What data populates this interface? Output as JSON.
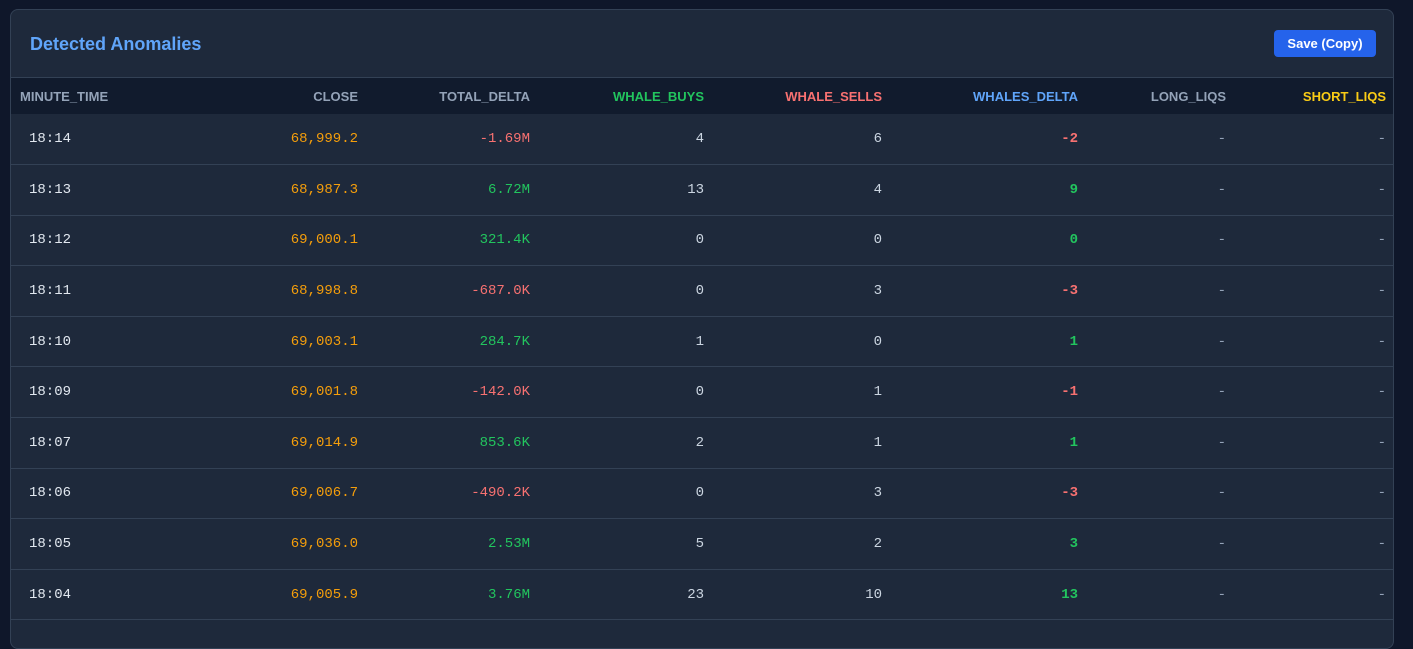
{
  "panel": {
    "title": "Detected Anomalies",
    "save_label": "Save (Copy)"
  },
  "colors": {
    "background": "#0f172a",
    "panel": "#1e293b",
    "title": "#60a5fa",
    "button": "#2563eb",
    "close": "#f59e0b",
    "positive": "#22c55e",
    "negative": "#f87171",
    "short_liqs_header": "#facc15"
  },
  "columns": [
    "MINUTE_TIME",
    "CLOSE",
    "TOTAL_DELTA",
    "WHALE_BUYS",
    "WHALE_SELLS",
    "WHALES_DELTA",
    "LONG_LIQS",
    "SHORT_LIQS"
  ],
  "rows": [
    {
      "time": "18:14",
      "close": "68,999.2",
      "total_delta": "-1.69M",
      "whale_buys": "4",
      "whale_sells": "6",
      "whales_delta": "-2",
      "long_liqs": "-",
      "short_liqs": "-"
    },
    {
      "time": "18:13",
      "close": "68,987.3",
      "total_delta": "6.72M",
      "whale_buys": "13",
      "whale_sells": "4",
      "whales_delta": "9",
      "long_liqs": "-",
      "short_liqs": "-"
    },
    {
      "time": "18:12",
      "close": "69,000.1",
      "total_delta": "321.4K",
      "whale_buys": "0",
      "whale_sells": "0",
      "whales_delta": "0",
      "long_liqs": "-",
      "short_liqs": "-"
    },
    {
      "time": "18:11",
      "close": "68,998.8",
      "total_delta": "-687.0K",
      "whale_buys": "0",
      "whale_sells": "3",
      "whales_delta": "-3",
      "long_liqs": "-",
      "short_liqs": "-"
    },
    {
      "time": "18:10",
      "close": "69,003.1",
      "total_delta": "284.7K",
      "whale_buys": "1",
      "whale_sells": "0",
      "whales_delta": "1",
      "long_liqs": "-",
      "short_liqs": "-"
    },
    {
      "time": "18:09",
      "close": "69,001.8",
      "total_delta": "-142.0K",
      "whale_buys": "0",
      "whale_sells": "1",
      "whales_delta": "-1",
      "long_liqs": "-",
      "short_liqs": "-"
    },
    {
      "time": "18:07",
      "close": "69,014.9",
      "total_delta": "853.6K",
      "whale_buys": "2",
      "whale_sells": "1",
      "whales_delta": "1",
      "long_liqs": "-",
      "short_liqs": "-"
    },
    {
      "time": "18:06",
      "close": "69,006.7",
      "total_delta": "-490.2K",
      "whale_buys": "0",
      "whale_sells": "3",
      "whales_delta": "-3",
      "long_liqs": "-",
      "short_liqs": "-"
    },
    {
      "time": "18:05",
      "close": "69,036.0",
      "total_delta": "2.53M",
      "whale_buys": "5",
      "whale_sells": "2",
      "whales_delta": "3",
      "long_liqs": "-",
      "short_liqs": "-"
    },
    {
      "time": "18:04",
      "close": "69,005.9",
      "total_delta": "3.76M",
      "whale_buys": "23",
      "whale_sells": "10",
      "whales_delta": "13",
      "long_liqs": "-",
      "short_liqs": "-"
    }
  ]
}
